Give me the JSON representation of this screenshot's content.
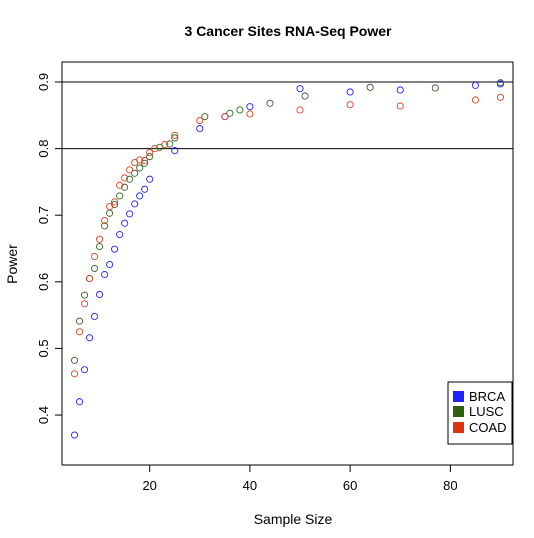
{
  "chart_data": {
    "type": "scatter",
    "title": "3 Cancer Sites RNA-Seq Power",
    "xlabel": "Sample Size",
    "ylabel": "Power",
    "xlim": [
      2.5,
      92.5
    ],
    "ylim": [
      0.325,
      0.93
    ],
    "xticks": [
      20,
      40,
      60,
      80
    ],
    "xtick_labels": [
      "20",
      "40",
      "60",
      "80"
    ],
    "yticks": [
      0.4,
      0.5,
      0.6,
      0.7,
      0.8,
      0.9
    ],
    "ytick_labels": [
      "0.4",
      "0.5",
      "0.6",
      "0.7",
      "0.8",
      "0.9"
    ],
    "hlines": [
      0.8,
      0.9
    ],
    "grid": false,
    "legend_position": "bottom-right",
    "marker": "open-circle",
    "series": [
      {
        "name": "BRCA",
        "color": "#2222ff",
        "legend_color": "#2222ff",
        "x": [
          5,
          6,
          7,
          8,
          9,
          10,
          11,
          12,
          13,
          14,
          15,
          16,
          17,
          18,
          19,
          20,
          25,
          30,
          35,
          40,
          50,
          60,
          70,
          85,
          90
        ],
        "y": [
          0.37,
          0.42,
          0.468,
          0.516,
          0.548,
          0.581,
          0.611,
          0.626,
          0.649,
          0.671,
          0.688,
          0.702,
          0.717,
          0.729,
          0.739,
          0.754,
          0.797,
          0.83,
          0.848,
          0.863,
          0.89,
          0.885,
          0.888,
          0.895,
          0.897
        ]
      },
      {
        "name": "LUSC",
        "color": "#336622",
        "legend_color": "#2f5f0f",
        "x": [
          5,
          6,
          7,
          8,
          9,
          10,
          11,
          12,
          13,
          14,
          15,
          16,
          17,
          18,
          19,
          20,
          22,
          24,
          25,
          31,
          36,
          38,
          44,
          51,
          64,
          77,
          90
        ],
        "y": [
          0.482,
          0.541,
          0.58,
          0.605,
          0.62,
          0.653,
          0.684,
          0.703,
          0.716,
          0.729,
          0.742,
          0.754,
          0.763,
          0.771,
          0.778,
          0.788,
          0.802,
          0.807,
          0.816,
          0.848,
          0.853,
          0.858,
          0.868,
          0.879,
          0.892,
          0.891,
          0.899
        ]
      },
      {
        "name": "COAD",
        "color": "#dd4422",
        "legend_color": "#dd3311",
        "x": [
          5,
          6,
          7,
          8,
          9,
          10,
          11,
          12,
          13,
          14,
          15,
          16,
          17,
          18,
          19,
          20,
          21,
          23,
          25,
          30,
          35,
          40,
          50,
          60,
          70,
          85,
          90
        ],
        "y": [
          0.462,
          0.525,
          0.567,
          0.605,
          0.638,
          0.664,
          0.692,
          0.713,
          0.72,
          0.745,
          0.756,
          0.768,
          0.779,
          0.783,
          0.782,
          0.794,
          0.8,
          0.806,
          0.82,
          0.842,
          0.848,
          0.852,
          0.858,
          0.866,
          0.864,
          0.873,
          0.877
        ]
      }
    ]
  }
}
